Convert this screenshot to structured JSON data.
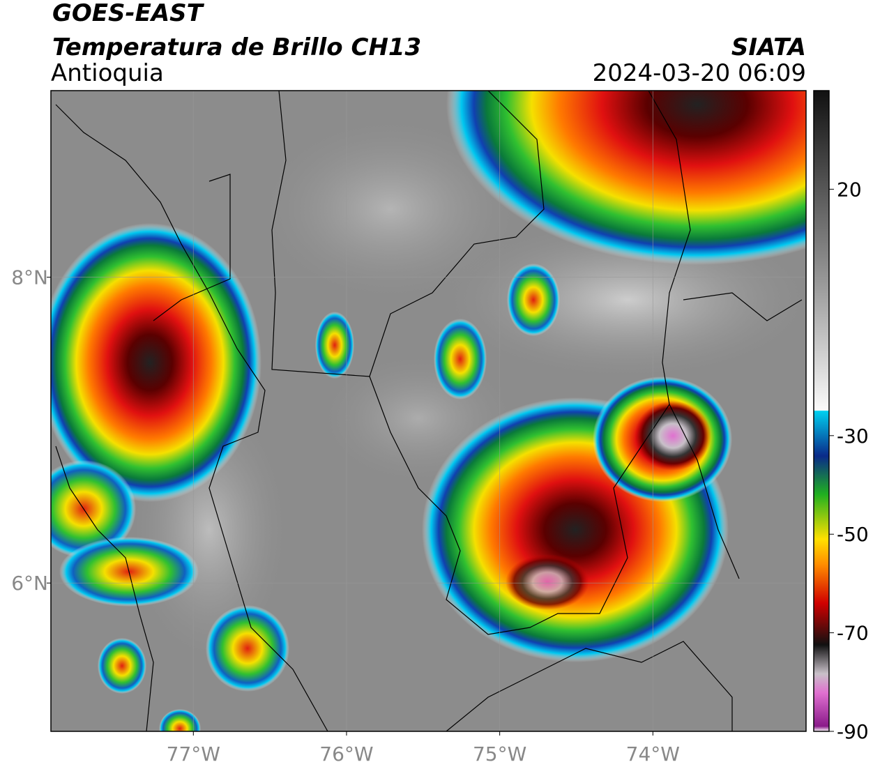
{
  "header": {
    "title": "GOES-EAST",
    "subtitle": "Temperatura de Brillo CH13",
    "region": "Antioquia",
    "source": "SIATA",
    "datetime": "2024-03-20 06:09"
  },
  "map": {
    "xlim": [
      -77.93,
      -73.0
    ],
    "ylim": [
      5.03,
      9.22
    ],
    "xticks": [
      {
        "value": -77,
        "label": "77°W"
      },
      {
        "value": -76,
        "label": "76°W"
      },
      {
        "value": -75,
        "label": "75°W"
      },
      {
        "value": -74,
        "label": "74°W"
      }
    ],
    "yticks": [
      {
        "value": 8,
        "label": "8°N"
      },
      {
        "value": 6,
        "label": "6°N"
      }
    ]
  },
  "colorbar": {
    "lim": [
      -90,
      40
    ],
    "ticks": [
      20,
      -30,
      -50,
      -70,
      -90
    ]
  }
}
